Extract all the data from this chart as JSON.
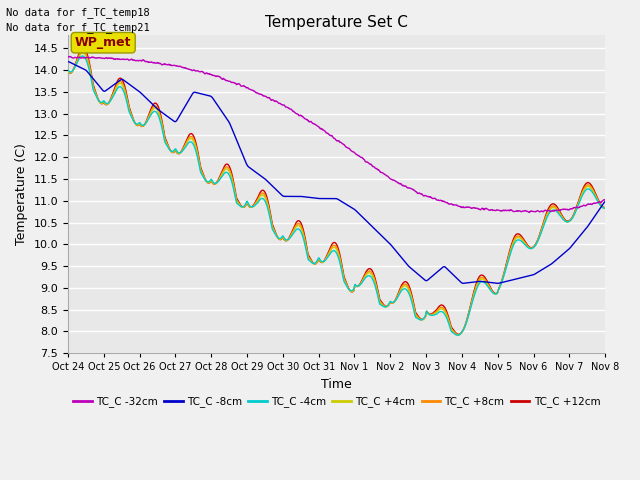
{
  "title": "Temperature Set C",
  "xlabel": "Time",
  "ylabel": "Temperature (C)",
  "ylim": [
    7.5,
    14.8
  ],
  "xlim": [
    0,
    15
  ],
  "bg_color": "#f0f0f0",
  "plot_bg_color": "#e8e8e8",
  "grid_color": "#ffffff",
  "annotations_top_left": [
    "No data for f_TC_temp18",
    "No data for f_TC_temp21"
  ],
  "wp_met_label": "WP_met",
  "x_tick_labels": [
    "Oct 24",
    "Oct 25",
    "Oct 26",
    "Oct 27",
    "Oct 28",
    "Oct 29",
    "Oct 30",
    "Oct 31",
    "Nov 1",
    "Nov 2",
    "Nov 3",
    "Nov 4",
    "Nov 5",
    "Nov 6",
    "Nov 7",
    "Nov 8"
  ],
  "legend_labels": [
    "TC_C -32cm",
    "TC_C -8cm",
    "TC_C -4cm",
    "TC_C +4cm",
    "TC_C +8cm",
    "TC_C +12cm"
  ],
  "legend_colors": [
    "#bb00bb",
    "#0000cc",
    "#00cccc",
    "#cccc00",
    "#ff8800",
    "#cc0000"
  ]
}
